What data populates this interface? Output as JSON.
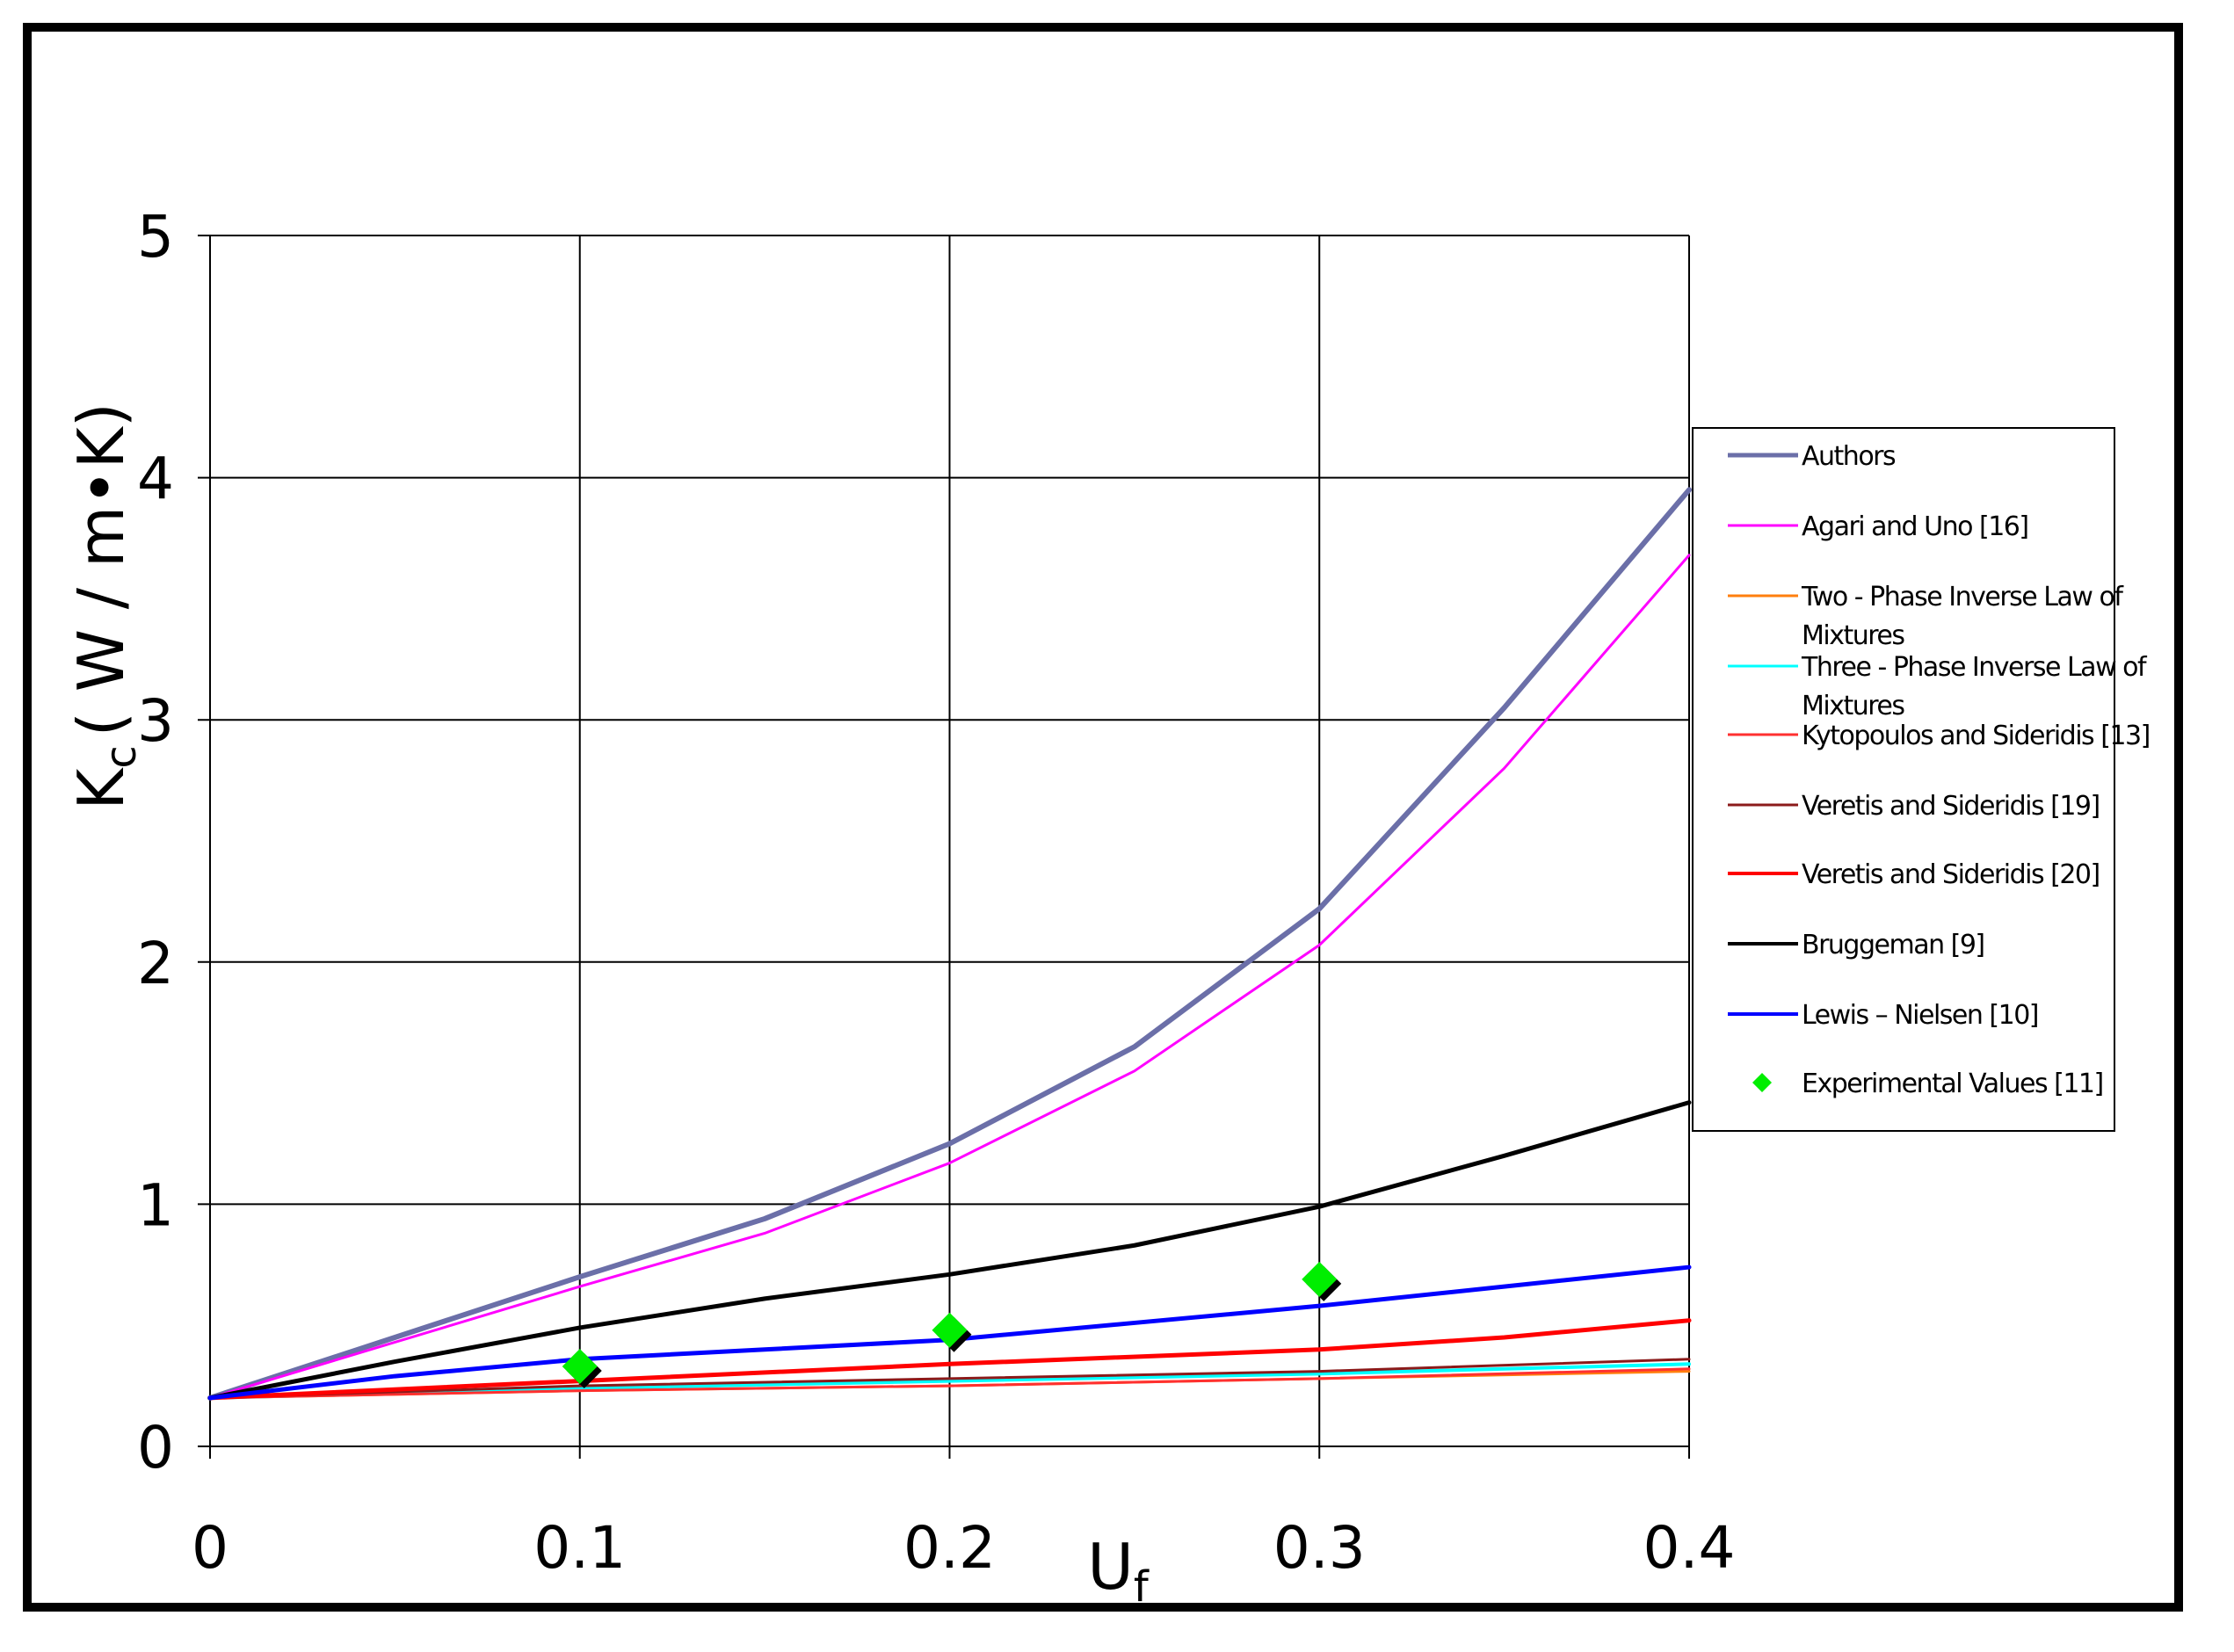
{
  "chart_data": {
    "type": "line",
    "xlabel": "U",
    "xlabel_sub": "f",
    "ylabel": "K",
    "ylabel_sub": "c",
    "ylabel_unit": "( W / m•K)",
    "xlim": [
      0,
      0.4
    ],
    "ylim": [
      0,
      5
    ],
    "x_ticks": [
      "0",
      "0.1",
      "0.2",
      "0.3",
      "0.4"
    ],
    "y_ticks": [
      "0",
      "1",
      "2",
      "3",
      "4",
      "5"
    ],
    "grid": true,
    "legend_position": "right",
    "series": [
      {
        "name": "Authors",
        "color": "#6b6fa8",
        "width": 6,
        "kind": "line",
        "x": [
          0,
          0.05,
          0.1,
          0.15,
          0.2,
          0.25,
          0.3,
          0.35,
          0.4
        ],
        "y": [
          0.2,
          0.45,
          0.7,
          0.94,
          1.25,
          1.65,
          2.22,
          3.05,
          3.95
        ]
      },
      {
        "name": "Agari and Uno [16]",
        "color": "#ff00ff",
        "width": 3,
        "kind": "line",
        "x": [
          0,
          0.05,
          0.1,
          0.15,
          0.2,
          0.25,
          0.3,
          0.35,
          0.4
        ],
        "y": [
          0.2,
          0.43,
          0.66,
          0.88,
          1.17,
          1.55,
          2.07,
          2.8,
          3.68
        ]
      },
      {
        "name": "Two - Phase Inverse Law of Mixtures",
        "color": "#ff7f0e",
        "width": 3,
        "kind": "line",
        "x": [
          0,
          0.1,
          0.2,
          0.3,
          0.4
        ],
        "y": [
          0.2,
          0.23,
          0.25,
          0.28,
          0.31
        ]
      },
      {
        "name": "Three - Phase Inverse Law of Mixtures",
        "color": "#00ffff",
        "width": 4,
        "kind": "line",
        "x": [
          0,
          0.1,
          0.2,
          0.3,
          0.4
        ],
        "y": [
          0.2,
          0.24,
          0.27,
          0.3,
          0.34
        ]
      },
      {
        "name": "Kytopoulos and Sideridis [13]",
        "color": "#ff3030",
        "width": 3,
        "kind": "line",
        "x": [
          0,
          0.1,
          0.2,
          0.3,
          0.4
        ],
        "y": [
          0.2,
          0.23,
          0.25,
          0.28,
          0.32
        ]
      },
      {
        "name": "Veretis and Sideridis [19]",
        "color": "#8b1a1a",
        "width": 3,
        "kind": "line",
        "x": [
          0,
          0.1,
          0.2,
          0.3,
          0.4
        ],
        "y": [
          0.2,
          0.25,
          0.28,
          0.31,
          0.36
        ]
      },
      {
        "name": "Veretis and Sideridis [20]",
        "color": "#ff0000",
        "width": 5,
        "kind": "line",
        "x": [
          0,
          0.1,
          0.2,
          0.3,
          0.35,
          0.4
        ],
        "y": [
          0.2,
          0.27,
          0.34,
          0.4,
          0.45,
          0.52
        ]
      },
      {
        "name": "Bruggeman [9]",
        "color": "#000000",
        "width": 5,
        "kind": "line",
        "x": [
          0,
          0.05,
          0.1,
          0.15,
          0.2,
          0.25,
          0.3,
          0.35,
          0.4
        ],
        "y": [
          0.2,
          0.35,
          0.49,
          0.61,
          0.71,
          0.83,
          0.99,
          1.2,
          1.42
        ]
      },
      {
        "name": "Lewis – Nielsen [10]",
        "color": "#0000ff",
        "width": 5,
        "kind": "line",
        "x": [
          0,
          0.05,
          0.1,
          0.15,
          0.2,
          0.25,
          0.3,
          0.35,
          0.4
        ],
        "y": [
          0.2,
          0.29,
          0.36,
          0.4,
          0.44,
          0.51,
          0.58,
          0.66,
          0.74
        ]
      },
      {
        "name": "Experimental Values [11]",
        "color": "#00ee00",
        "kind": "marker",
        "x": [
          0.1,
          0.2,
          0.3
        ],
        "y": [
          0.33,
          0.48,
          0.69
        ]
      }
    ],
    "legend_lines": [
      [
        "Authors"
      ],
      [
        "Agari and Uno [16]"
      ],
      [
        "Two - Phase Inverse Law of",
        "Mixtures"
      ],
      [
        "Three - Phase Inverse Law of",
        "Mixtures"
      ],
      [
        "Kytopoulos and Sideridis [13]"
      ],
      [
        "Veretis and Sideridis [19]"
      ],
      [
        "Veretis and Sideridis [20]"
      ],
      [
        "Bruggeman [9]"
      ],
      [
        "Lewis – Nielsen [10]"
      ],
      [
        "Experimental Values [11]"
      ]
    ]
  }
}
